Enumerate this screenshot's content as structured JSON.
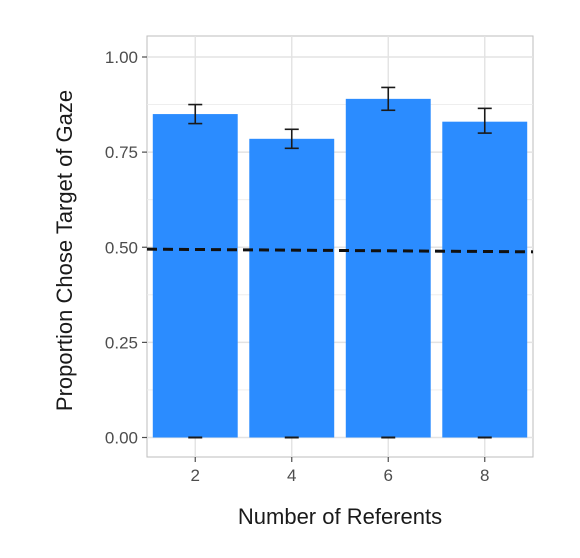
{
  "chart_data": {
    "type": "bar",
    "xlabel": "Number of Referents",
    "ylabel": "Proportion Chose Target of Gaze",
    "categories": [
      "2",
      "4",
      "6",
      "8"
    ],
    "values": [
      0.85,
      0.785,
      0.89,
      0.83
    ],
    "error_low": [
      0.825,
      0.76,
      0.86,
      0.8
    ],
    "error_high": [
      0.875,
      0.81,
      0.92,
      0.865
    ],
    "ylim": [
      0,
      1.04
    ],
    "y_ticks": [
      0,
      0.25,
      0.5,
      0.75,
      1.0
    ],
    "y_tick_labels": [
      "0.00",
      "0.25",
      "0.50",
      "0.75",
      "1.00"
    ],
    "reference_line": {
      "y_start": 0.495,
      "y_end": 0.488,
      "style": "dashed"
    },
    "grid": true,
    "bar_color": "#2b8cff",
    "panel_background": "#ffffff",
    "grid_color": "#ebebeb"
  }
}
